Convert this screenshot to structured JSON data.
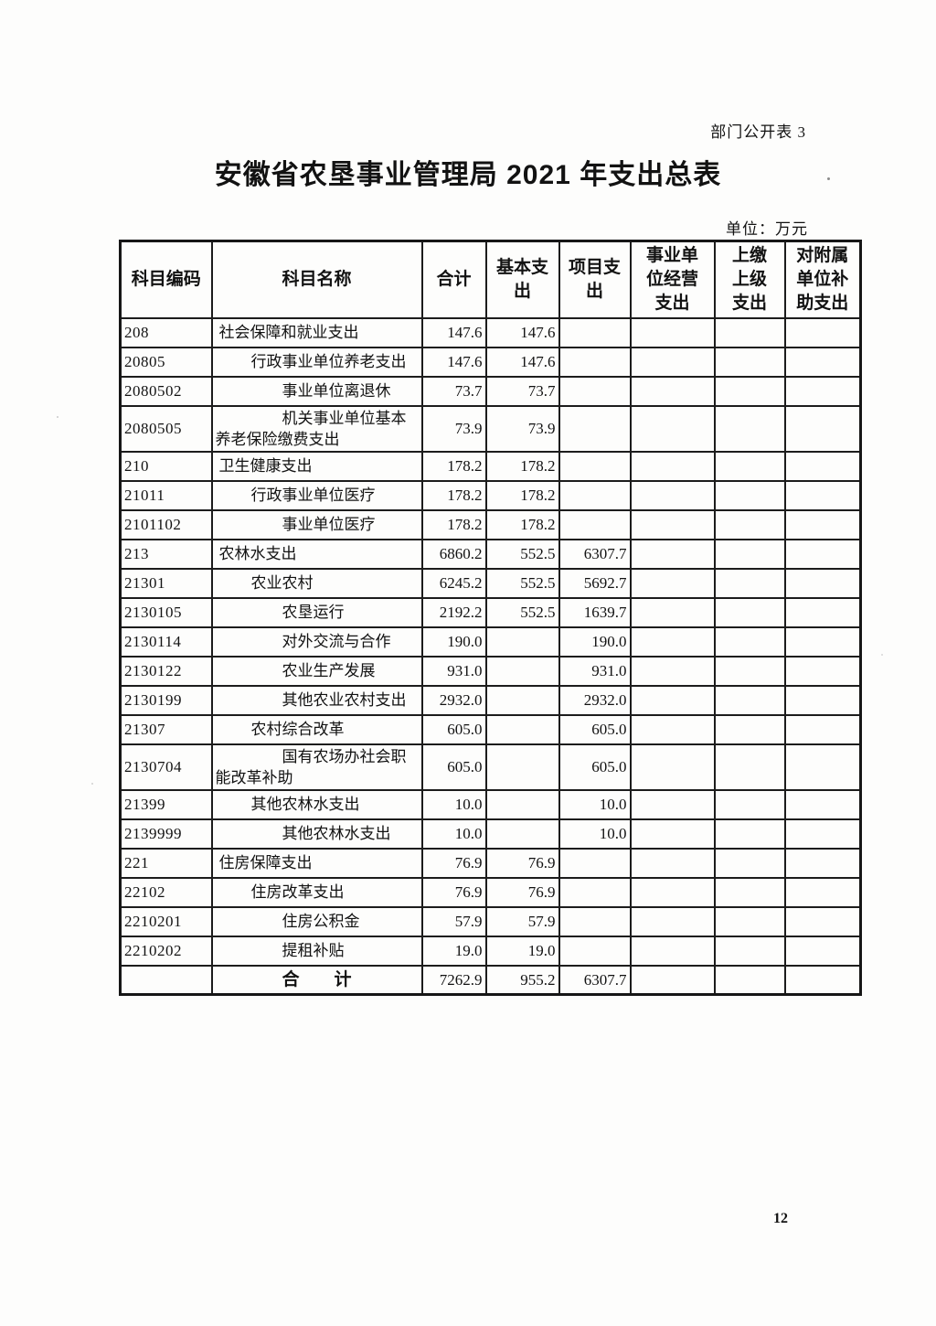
{
  "page": {
    "corner_label": "部门公开表 3",
    "title": "安徽省农垦事业管理局 2021 年支出总表",
    "unit_note": "单位：万元",
    "page_number": "12"
  },
  "table": {
    "columns": [
      {
        "key": "code",
        "label": "科目编码"
      },
      {
        "key": "name",
        "label": "科目名称"
      },
      {
        "key": "total",
        "label": "合计"
      },
      {
        "key": "basic",
        "label": "基本支\n出"
      },
      {
        "key": "project",
        "label": "项目支\n出"
      },
      {
        "key": "business",
        "label": "事业单\n位经营\n支出"
      },
      {
        "key": "upper",
        "label": "上缴\n上级\n支出"
      },
      {
        "key": "subsidy",
        "label": "对附属\n单位补\n助支出"
      }
    ],
    "rows": [
      {
        "code": "208",
        "name": "社会保障和就业支出",
        "level": "1",
        "total": "147.6",
        "basic": "147.6",
        "project": "",
        "business": "",
        "upper": "",
        "subsidy": ""
      },
      {
        "code": "20805",
        "name": "行政事业单位养老支出",
        "level": "2",
        "total": "147.6",
        "basic": "147.6",
        "project": "",
        "business": "",
        "upper": "",
        "subsidy": ""
      },
      {
        "code": "2080502",
        "name": "事业单位离退休",
        "level": "3",
        "total": "73.7",
        "basic": "73.7",
        "project": "",
        "business": "",
        "upper": "",
        "subsidy": ""
      },
      {
        "code": "2080505",
        "name": "机关事业单位基本养老保险缴费支出",
        "level": "3",
        "total": "73.9",
        "basic": "73.9",
        "project": "",
        "business": "",
        "upper": "",
        "subsidy": ""
      },
      {
        "code": "210",
        "name": "卫生健康支出",
        "level": "1",
        "total": "178.2",
        "basic": "178.2",
        "project": "",
        "business": "",
        "upper": "",
        "subsidy": ""
      },
      {
        "code": "21011",
        "name": "行政事业单位医疗",
        "level": "2",
        "total": "178.2",
        "basic": "178.2",
        "project": "",
        "business": "",
        "upper": "",
        "subsidy": ""
      },
      {
        "code": "2101102",
        "name": "事业单位医疗",
        "level": "3",
        "total": "178.2",
        "basic": "178.2",
        "project": "",
        "business": "",
        "upper": "",
        "subsidy": ""
      },
      {
        "code": "213",
        "name": "农林水支出",
        "level": "1",
        "total": "6860.2",
        "basic": "552.5",
        "project": "6307.7",
        "business": "",
        "upper": "",
        "subsidy": ""
      },
      {
        "code": "21301",
        "name": "农业农村",
        "level": "2",
        "total": "6245.2",
        "basic": "552.5",
        "project": "5692.7",
        "business": "",
        "upper": "",
        "subsidy": ""
      },
      {
        "code": "2130105",
        "name": "农垦运行",
        "level": "3",
        "total": "2192.2",
        "basic": "552.5",
        "project": "1639.7",
        "business": "",
        "upper": "",
        "subsidy": ""
      },
      {
        "code": "2130114",
        "name": "对外交流与合作",
        "level": "3",
        "total": "190.0",
        "basic": "",
        "project": "190.0",
        "business": "",
        "upper": "",
        "subsidy": ""
      },
      {
        "code": "2130122",
        "name": "农业生产发展",
        "level": "3",
        "total": "931.0",
        "basic": "",
        "project": "931.0",
        "business": "",
        "upper": "",
        "subsidy": ""
      },
      {
        "code": "2130199",
        "name": "其他农业农村支出",
        "level": "3",
        "total": "2932.0",
        "basic": "",
        "project": "2932.0",
        "business": "",
        "upper": "",
        "subsidy": ""
      },
      {
        "code": "21307",
        "name": "农村综合改革",
        "level": "2",
        "total": "605.0",
        "basic": "",
        "project": "605.0",
        "business": "",
        "upper": "",
        "subsidy": ""
      },
      {
        "code": "2130704",
        "name": "国有农场办社会职能改革补助",
        "level": "3",
        "total": "605.0",
        "basic": "",
        "project": "605.0",
        "business": "",
        "upper": "",
        "subsidy": ""
      },
      {
        "code": "21399",
        "name": "其他农林水支出",
        "level": "2",
        "total": "10.0",
        "basic": "",
        "project": "10.0",
        "business": "",
        "upper": "",
        "subsidy": ""
      },
      {
        "code": "2139999",
        "name": "其他农林水支出",
        "level": "3",
        "total": "10.0",
        "basic": "",
        "project": "10.0",
        "business": "",
        "upper": "",
        "subsidy": ""
      },
      {
        "code": "221",
        "name": "住房保障支出",
        "level": "1",
        "total": "76.9",
        "basic": "76.9",
        "project": "",
        "business": "",
        "upper": "",
        "subsidy": ""
      },
      {
        "code": "22102",
        "name": "住房改革支出",
        "level": "2",
        "total": "76.9",
        "basic": "76.9",
        "project": "",
        "business": "",
        "upper": "",
        "subsidy": ""
      },
      {
        "code": "2210201",
        "name": "住房公积金",
        "level": "3",
        "total": "57.9",
        "basic": "57.9",
        "project": "",
        "business": "",
        "upper": "",
        "subsidy": ""
      },
      {
        "code": "2210202",
        "name": "提租补贴",
        "level": "3",
        "total": "19.0",
        "basic": "19.0",
        "project": "",
        "business": "",
        "upper": "",
        "subsidy": ""
      },
      {
        "code": "",
        "name": "合　　计",
        "level": "total",
        "total": "7262.9",
        "basic": "955.2",
        "project": "6307.7",
        "business": "",
        "upper": "",
        "subsidy": ""
      }
    ]
  }
}
